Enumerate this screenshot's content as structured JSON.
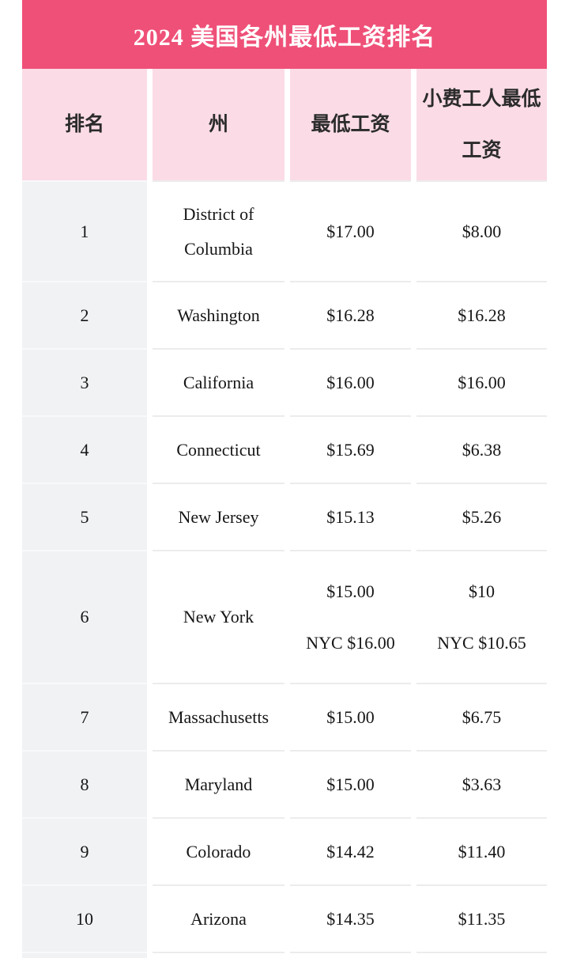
{
  "chart_data": {
    "type": "table",
    "title": "2024 美国各州最低工资排名",
    "columns": [
      "排名",
      "州",
      "最低工资",
      "小费工人最低\n工资"
    ],
    "rows": [
      {
        "rank": "1",
        "state": "District of\nColumbia",
        "min_wage": "$17.00",
        "tipped_wage": "$8.00"
      },
      {
        "rank": "2",
        "state": "Washington",
        "min_wage": "$16.28",
        "tipped_wage": "$16.28"
      },
      {
        "rank": "3",
        "state": "California",
        "min_wage": "$16.00",
        "tipped_wage": "$16.00"
      },
      {
        "rank": "4",
        "state": "Connecticut",
        "min_wage": "$15.69",
        "tipped_wage": "$6.38"
      },
      {
        "rank": "5",
        "state": "New Jersey",
        "min_wage": "$15.13",
        "tipped_wage": "$5.26"
      },
      {
        "rank": "6",
        "state": "New York",
        "min_wage": "$15.00\nNYC $16.00",
        "tipped_wage": "$10\nNYC $10.65"
      },
      {
        "rank": "7",
        "state": "Massachusetts",
        "min_wage": "$15.00",
        "tipped_wage": "$6.75"
      },
      {
        "rank": "8",
        "state": "Maryland",
        "min_wage": "$15.00",
        "tipped_wage": "$3.63"
      },
      {
        "rank": "9",
        "state": "Colorado",
        "min_wage": "$14.42",
        "tipped_wage": "$11.40"
      },
      {
        "rank": "10",
        "state": "Arizona",
        "min_wage": "$14.35",
        "tipped_wage": "$11.35"
      }
    ]
  },
  "colors": {
    "title_bar": "#ef5078",
    "header_bg": "#fbdce6",
    "rank_column_bg": "#f1f2f4",
    "row_line": "#ececee",
    "title_text": "#ffffff",
    "body_text": "#161616"
  }
}
